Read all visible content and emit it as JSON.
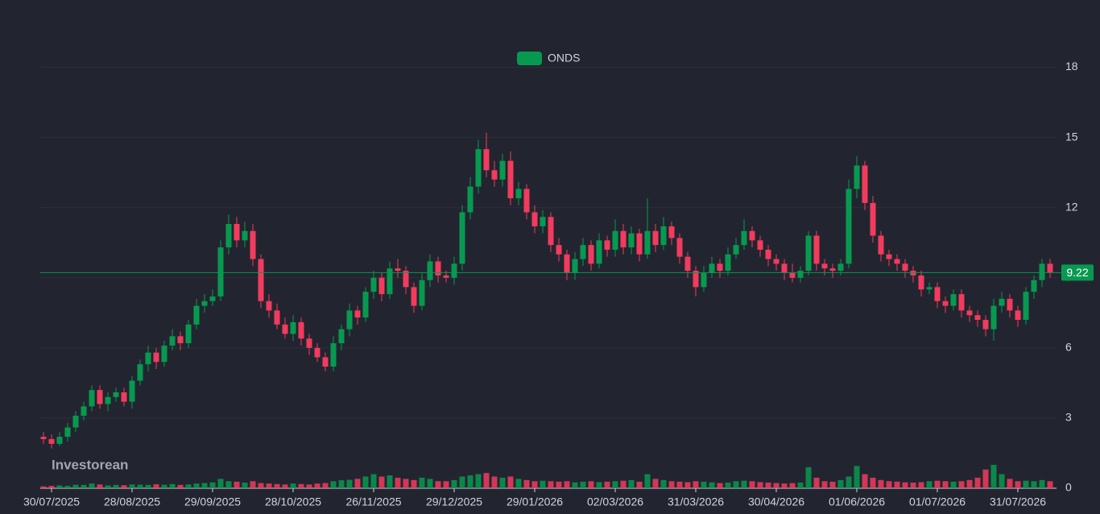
{
  "chart_data": {
    "type": "candlestick",
    "name": "ONDS",
    "watermark": "Investorean",
    "up_color": "#089950",
    "down_color": "#f23b5e",
    "grid": true,
    "ylim": [
      0,
      19.5
    ],
    "yticks": [
      0,
      3,
      6,
      9,
      12,
      15,
      18
    ],
    "x": [
      null,
      "30/07/2025",
      null,
      null,
      null,
      null,
      null,
      null,
      null,
      null,
      null,
      "28/08/2025",
      null,
      null,
      null,
      null,
      null,
      null,
      null,
      null,
      null,
      "29/09/2025",
      null,
      null,
      null,
      null,
      null,
      null,
      null,
      null,
      null,
      "28/10/2025",
      null,
      null,
      null,
      null,
      null,
      null,
      null,
      null,
      null,
      "26/11/2025",
      null,
      null,
      null,
      null,
      null,
      null,
      null,
      null,
      null,
      "29/12/2025",
      null,
      null,
      null,
      null,
      null,
      null,
      null,
      null,
      null,
      "29/01/2026",
      null,
      null,
      null,
      null,
      null,
      null,
      null,
      null,
      null,
      "02/03/2026",
      null,
      null,
      null,
      null,
      null,
      null,
      null,
      null,
      null,
      "31/03/2026",
      null,
      null,
      null,
      null,
      null,
      null,
      null,
      null,
      null,
      "30/04/2026",
      null,
      null,
      null,
      null,
      null,
      null,
      null,
      null,
      null,
      "01/06/2026",
      null,
      null,
      null,
      null,
      null,
      null,
      null,
      null,
      null,
      "01/07/2026",
      null,
      null,
      null,
      null,
      null,
      null,
      null,
      null,
      null,
      "31/07/2026",
      null,
      null,
      null,
      null
    ],
    "open": [
      2.2,
      2.1,
      1.9,
      2.2,
      2.6,
      3.1,
      3.5,
      4.2,
      3.6,
      3.9,
      4.1,
      3.7,
      4.6,
      5.3,
      5.8,
      5.4,
      6.1,
      6.5,
      6.2,
      7.0,
      7.8,
      8.0,
      8.2,
      10.3,
      11.3,
      10.6,
      11.0,
      9.8,
      8.0,
      7.6,
      7.0,
      6.6,
      7.1,
      6.4,
      6.0,
      5.6,
      5.2,
      6.2,
      6.8,
      7.6,
      7.3,
      8.4,
      9.0,
      8.3,
      9.4,
      9.3,
      8.6,
      7.8,
      8.9,
      9.7,
      9.1,
      9.0,
      9.6,
      11.8,
      12.9,
      14.5,
      13.6,
      13.2,
      14.0,
      12.4,
      12.8,
      11.8,
      11.2,
      11.6,
      10.4,
      10.0,
      9.2,
      9.8,
      10.4,
      9.6,
      10.6,
      10.2,
      11.0,
      10.3,
      10.9,
      10.0,
      11.0,
      10.4,
      11.2,
      10.7,
      9.9,
      9.3,
      8.6,
      9.2,
      9.6,
      9.3,
      10.0,
      10.4,
      11.0,
      10.6,
      10.2,
      9.8,
      9.6,
      9.2,
      9.0,
      9.3,
      10.8,
      9.6,
      9.4,
      9.3,
      9.6,
      12.8,
      13.8,
      12.2,
      10.8,
      10.0,
      9.8,
      9.6,
      9.3,
      9.1,
      8.5,
      8.6,
      8.0,
      7.8,
      8.3,
      7.6,
      7.4,
      7.2,
      6.8,
      7.8,
      8.1,
      7.6,
      7.2,
      8.4,
      8.9,
      9.6
    ],
    "high": [
      2.4,
      2.3,
      2.4,
      2.8,
      3.3,
      3.7,
      4.4,
      4.4,
      4.1,
      4.3,
      4.3,
      4.8,
      5.5,
      6.1,
      6.0,
      6.3,
      6.8,
      6.7,
      7.2,
      8.1,
      8.3,
      8.5,
      10.6,
      11.7,
      11.6,
      11.4,
      11.3,
      10.0,
      8.3,
      7.9,
      7.3,
      7.4,
      7.3,
      6.6,
      6.2,
      5.8,
      6.5,
      7.0,
      7.9,
      7.8,
      8.6,
      9.3,
      9.2,
      9.7,
      9.8,
      9.5,
      8.8,
      9.2,
      10.0,
      9.9,
      9.3,
      9.9,
      12.1,
      13.3,
      14.9,
      15.2,
      14.0,
      14.3,
      14.4,
      13.1,
      13.0,
      12.1,
      11.9,
      11.8,
      10.7,
      10.2,
      10.1,
      10.7,
      10.6,
      10.9,
      10.8,
      11.5,
      11.3,
      11.2,
      11.1,
      12.4,
      11.3,
      11.6,
      11.4,
      10.9,
      10.1,
      9.5,
      9.5,
      9.9,
      9.8,
      10.3,
      10.7,
      11.5,
      11.2,
      10.8,
      10.4,
      10.0,
      9.8,
      9.6,
      9.5,
      11.0,
      11.0,
      9.8,
      9.6,
      9.8,
      13.2,
      14.2,
      14.0,
      12.5,
      11.0,
      10.2,
      10.0,
      9.8,
      9.5,
      9.3,
      8.8,
      8.8,
      8.2,
      8.5,
      8.5,
      7.8,
      7.6,
      7.4,
      8.1,
      8.4,
      8.3,
      7.8,
      8.6,
      9.1,
      9.8,
      9.8
    ],
    "low": [
      1.9,
      1.7,
      1.8,
      2.0,
      2.4,
      2.9,
      3.3,
      3.4,
      3.3,
      3.7,
      3.5,
      3.4,
      4.4,
      5.0,
      5.1,
      5.2,
      5.9,
      5.9,
      6.0,
      6.8,
      7.5,
      7.8,
      8.0,
      10.0,
      10.3,
      10.3,
      9.5,
      7.7,
      7.3,
      6.8,
      6.4,
      6.3,
      6.1,
      5.7,
      5.4,
      5.0,
      5.0,
      5.9,
      6.5,
      7.0,
      7.1,
      8.1,
      8.0,
      8.1,
      9.0,
      8.3,
      7.5,
      7.6,
      8.6,
      8.8,
      8.8,
      8.7,
      9.3,
      11.5,
      12.6,
      13.3,
      12.9,
      12.9,
      12.1,
      12.1,
      11.5,
      10.9,
      10.9,
      10.1,
      9.7,
      8.9,
      8.9,
      9.5,
      9.3,
      9.4,
      9.9,
      9.9,
      10.0,
      10.0,
      9.7,
      9.8,
      10.1,
      10.2,
      10.4,
      9.6,
      9.0,
      8.2,
      8.4,
      9.0,
      9.0,
      9.1,
      9.8,
      10.2,
      10.3,
      9.9,
      9.5,
      9.3,
      8.9,
      8.8,
      8.8,
      9.1,
      9.3,
      9.1,
      9.0,
      9.1,
      9.4,
      12.4,
      11.9,
      10.5,
      9.7,
      9.5,
      9.3,
      9.0,
      8.8,
      8.2,
      8.3,
      7.7,
      7.5,
      7.6,
      7.3,
      7.1,
      6.9,
      6.5,
      6.3,
      7.5,
      7.3,
      6.9,
      7.0,
      8.1,
      8.6,
      9.0
    ],
    "close": [
      2.1,
      1.9,
      2.2,
      2.6,
      3.1,
      3.5,
      4.2,
      3.6,
      3.9,
      4.1,
      3.7,
      4.6,
      5.3,
      5.8,
      5.4,
      6.1,
      6.5,
      6.2,
      7.0,
      7.8,
      8.0,
      8.2,
      10.3,
      11.3,
      10.6,
      11.0,
      9.8,
      8.0,
      7.6,
      7.0,
      6.6,
      7.1,
      6.4,
      6.0,
      5.6,
      5.2,
      6.2,
      6.8,
      7.6,
      7.3,
      8.4,
      9.0,
      8.3,
      9.4,
      9.3,
      8.6,
      7.8,
      8.9,
      9.7,
      9.1,
      9.0,
      9.6,
      11.8,
      12.9,
      14.5,
      13.6,
      13.2,
      14.0,
      12.4,
      12.8,
      11.8,
      11.2,
      11.6,
      10.4,
      10.0,
      9.2,
      9.8,
      10.4,
      9.6,
      10.6,
      10.2,
      11.0,
      10.3,
      10.9,
      10.0,
      11.0,
      10.4,
      11.2,
      10.7,
      9.9,
      9.3,
      8.6,
      9.2,
      9.6,
      9.3,
      10.0,
      10.4,
      11.0,
      10.6,
      10.2,
      9.8,
      9.6,
      9.2,
      9.0,
      9.3,
      10.8,
      9.6,
      9.4,
      9.3,
      9.6,
      12.8,
      13.8,
      12.2,
      10.8,
      10.0,
      9.8,
      9.6,
      9.3,
      9.1,
      8.5,
      8.6,
      8.0,
      7.8,
      8.3,
      7.6,
      7.4,
      7.2,
      6.8,
      7.8,
      8.1,
      7.6,
      7.2,
      8.4,
      8.9,
      9.6,
      9.22
    ],
    "volume": [
      0.08,
      0.1,
      0.12,
      0.1,
      0.15,
      0.14,
      0.2,
      0.16,
      0.12,
      0.14,
      0.13,
      0.16,
      0.15,
      0.14,
      0.17,
      0.15,
      0.18,
      0.14,
      0.16,
      0.2,
      0.22,
      0.25,
      0.4,
      0.3,
      0.28,
      0.24,
      0.3,
      0.22,
      0.2,
      0.18,
      0.16,
      0.2,
      0.18,
      0.16,
      0.2,
      0.22,
      0.3,
      0.34,
      0.36,
      0.4,
      0.5,
      0.6,
      0.5,
      0.55,
      0.45,
      0.4,
      0.35,
      0.45,
      0.4,
      0.3,
      0.3,
      0.35,
      0.5,
      0.55,
      0.6,
      0.65,
      0.5,
      0.45,
      0.5,
      0.4,
      0.35,
      0.3,
      0.32,
      0.3,
      0.28,
      0.3,
      0.25,
      0.28,
      0.3,
      0.26,
      0.28,
      0.3,
      0.32,
      0.35,
      0.28,
      0.6,
      0.4,
      0.35,
      0.3,
      0.28,
      0.26,
      0.3,
      0.28,
      0.25,
      0.22,
      0.24,
      0.3,
      0.32,
      0.3,
      0.26,
      0.24,
      0.22,
      0.2,
      0.22,
      0.24,
      0.9,
      0.45,
      0.3,
      0.28,
      0.35,
      0.5,
      0.95,
      0.6,
      0.45,
      0.35,
      0.3,
      0.28,
      0.25,
      0.24,
      0.26,
      0.3,
      0.32,
      0.3,
      0.28,
      0.3,
      0.35,
      0.45,
      0.8,
      1.0,
      0.6,
      0.4,
      0.3,
      0.32,
      0.3,
      0.35,
      0.3
    ]
  }
}
